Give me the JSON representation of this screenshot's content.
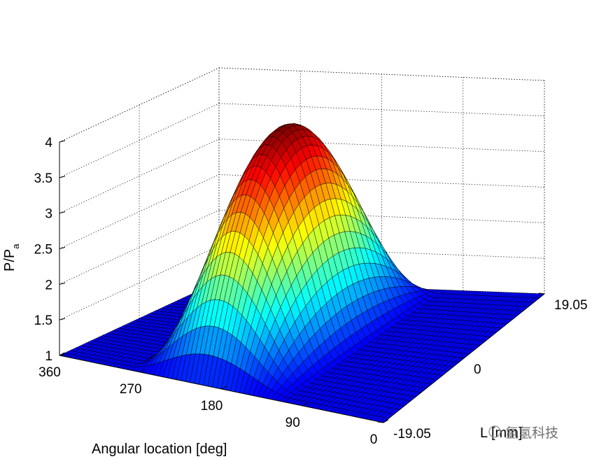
{
  "chart_data": {
    "type": "surface",
    "zlabel": "P/P",
    "zlabel_subscript": "a",
    "xlabel": "Angular location [deg]",
    "ylabel": "L [mm]",
    "x_ticks": [
      "360",
      "270",
      "180",
      "90",
      "0"
    ],
    "y_ticks": [
      "19.05",
      "0",
      "-19.05"
    ],
    "z_ticks": [
      "4",
      "3.5",
      "3",
      "2.5",
      "2",
      "1.5",
      "1"
    ],
    "xlim": [
      0,
      360
    ],
    "ylim": [
      -19.05,
      19.05
    ],
    "zlim": [
      1,
      4
    ],
    "grid": true,
    "colormap": "jet",
    "surface": {
      "baseline": 1.0,
      "peak_value": 3.95,
      "peak_angle_deg": 200,
      "loaded_zone_deg": [
        110,
        285
      ],
      "axial_profile": "parabolic, maximum at L = 0"
    }
  },
  "watermark": "氢氢科技"
}
